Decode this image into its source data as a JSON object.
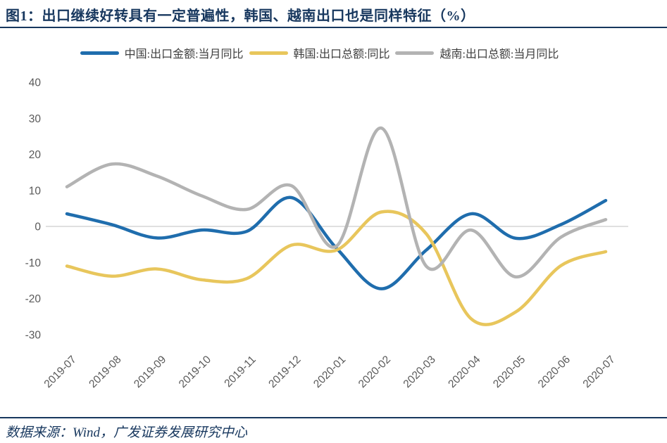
{
  "header": {
    "title": "图1：出口继续好转具有一定普遍性，韩国、越南出口也是同样特征（%）"
  },
  "footer": {
    "source_text": "数据来源：Wind，广发证券发展研究中心"
  },
  "colors": {
    "navy": "#17375E",
    "china_blue": "#1F6DAD",
    "korea_yellow": "#E8C65C",
    "vietnam_gray": "#B3B3B3",
    "tick_text": "#595959",
    "zero_gridline": "#D6D6D6"
  },
  "chart_data": {
    "type": "line",
    "title": "出口继续好转具有一定普遍性，韩国、越南出口也是同样特征（%）",
    "categories": [
      "2019-07",
      "2019-08",
      "2019-09",
      "2019-10",
      "2019-11",
      "2019-12",
      "2020-01",
      "2020-02",
      "2020-03",
      "2020-04",
      "2020-05",
      "2020-06",
      "2020-07"
    ],
    "series": [
      {
        "key": "china",
        "name": "中国:出口金额:当月同比",
        "color": "#1F6DAD",
        "values": [
          3.5,
          0.5,
          -3.2,
          -1.0,
          -1.4,
          8.0,
          -6.0,
          -17.3,
          -6.6,
          3.5,
          -3.3,
          0.5,
          7.2
        ]
      },
      {
        "key": "korea",
        "name": "韩国:出口总额:同比",
        "color": "#E8C65C",
        "values": [
          -11.0,
          -13.8,
          -11.8,
          -14.8,
          -14.5,
          -5.2,
          -6.6,
          4.0,
          -2.0,
          -25.6,
          -23.7,
          -10.9,
          -7.0
        ]
      },
      {
        "key": "vietnam",
        "name": "越南:出口总额:当月同比",
        "color": "#B3B3B3",
        "values": [
          11.0,
          17.3,
          14.0,
          8.5,
          4.7,
          11.3,
          -5.5,
          27.3,
          -11.0,
          -1.0,
          -14.0,
          -3.0,
          1.9
        ]
      }
    ],
    "xlabel": "",
    "ylabel": "",
    "ylim": [
      -30,
      40
    ],
    "yticks": [
      40,
      30,
      20,
      10,
      0,
      -10,
      -20,
      -30
    ],
    "grid": "zero-line-only",
    "legend_position": "top",
    "smoothed": true
  }
}
